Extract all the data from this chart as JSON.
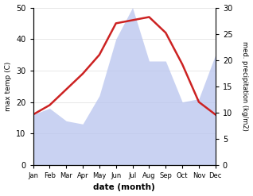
{
  "months": [
    "Jan",
    "Feb",
    "Mar",
    "Apr",
    "May",
    "Jun",
    "Jul",
    "Aug",
    "Sep",
    "Oct",
    "Nov",
    "Dec"
  ],
  "temp_max": [
    16,
    19,
    24,
    29,
    35,
    45,
    46,
    47,
    42,
    32,
    20,
    16
  ],
  "precip_left_scale": [
    16,
    18,
    14,
    13,
    22,
    40,
    50,
    33,
    33,
    20,
    21,
    35
  ],
  "temp_ylim": [
    0,
    50
  ],
  "precip_ylim": [
    0,
    30
  ],
  "temp_color": "#cc2222",
  "precip_fill_color": "#b8c4ee",
  "xlabel": "date (month)",
  "ylabel_left": "max temp (C)",
  "ylabel_right": "med. precipitation (kg/m2)",
  "bg_color": "#ffffff",
  "temp_linewidth": 1.8
}
